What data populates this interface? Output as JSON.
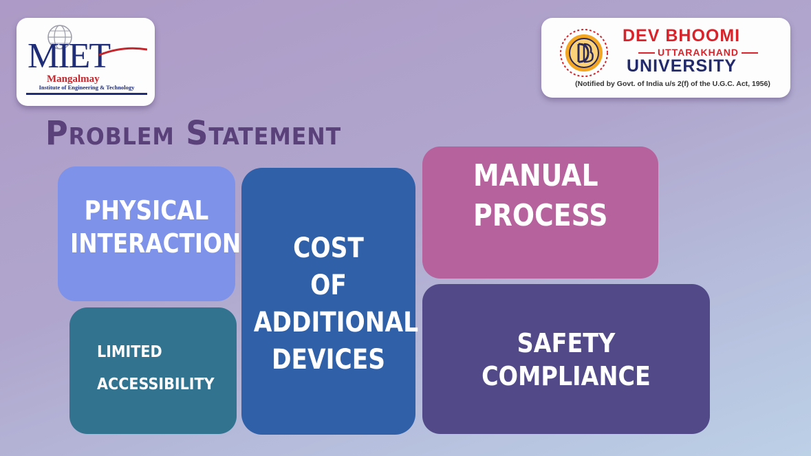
{
  "logos": {
    "miet": {
      "letters": "MIET",
      "name": "Mangalmay",
      "subtitle": "Institute of Engineering & Technology"
    },
    "dbu": {
      "line1": "DEV BHOOMI",
      "line2": "UTTARAKHAND",
      "line3": "UNIVERSITY",
      "note": "(Notified by Govt. of India u/s 2(f) of the U.G.C. Act, 1956)"
    }
  },
  "slide": {
    "title": "Problem Statement",
    "tiles": {
      "physical": "PHYSICAL\nINTERACTION",
      "limited_1": "LIMITED",
      "limited_2": "ACCESSIBILITY",
      "cost": "COST\nOF\nADDITIONAL\nDEVICES",
      "manual": "MANUAL\nPROCESS",
      "safety": "SAFETY\nCOMPLIANCE"
    }
  },
  "colors": {
    "title": "#5a4179",
    "physical": "#7e92ea",
    "limited": "#32738f",
    "cost": "#3060a8",
    "manual": "#b5629d",
    "safety": "#524a88"
  }
}
